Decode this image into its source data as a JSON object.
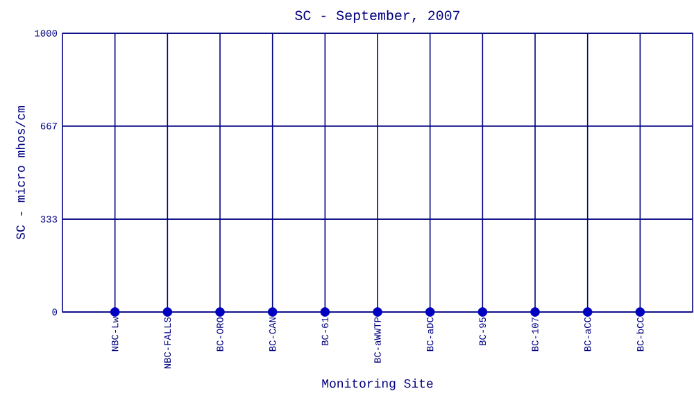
{
  "chart_data": {
    "type": "scatter",
    "title": "SC - September, 2007",
    "xlabel": "Monitoring Site",
    "ylabel": "SC - micro mhos/cm",
    "categories": [
      "NBC-Lw",
      "NBC-FALLS",
      "BC-ORO",
      "BC-CAN",
      "BC-61",
      "BC-aWWTP",
      "BC-aDC",
      "BC-95",
      "BC-107",
      "BC-aCC",
      "BC-bCC"
    ],
    "series": [
      {
        "color": "#0000c0",
        "values": [
          0,
          0,
          0,
          0,
          0,
          0,
          0,
          0,
          0,
          0,
          0
        ]
      }
    ],
    "ylim": [
      0,
      1000
    ],
    "yticks": [
      0,
      333,
      667,
      1000
    ],
    "grid": true,
    "marker": "circle"
  }
}
